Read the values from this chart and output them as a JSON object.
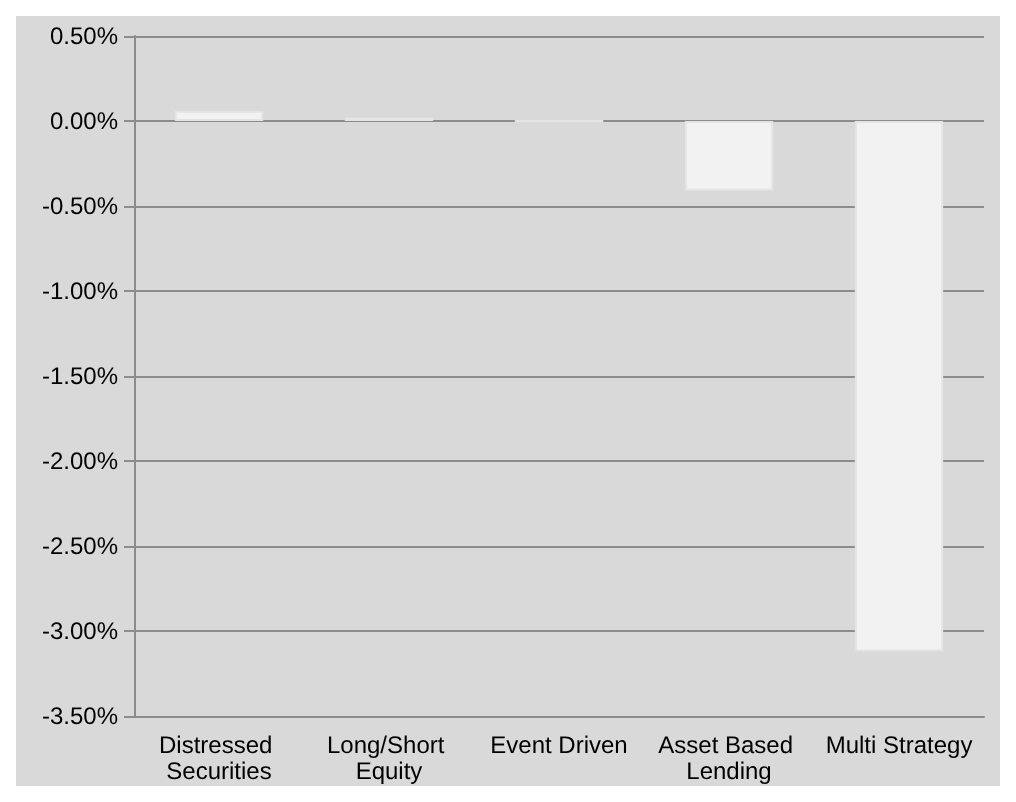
{
  "chart_data": {
    "type": "bar",
    "categories": [
      "Distressed Securities",
      "Long/Short Equity",
      "Event Driven",
      "Asset Based Lending",
      "Multi Strategy"
    ],
    "values": [
      0.06,
      0.02,
      0,
      -0.41,
      -3.12
    ],
    "color": "#f2f2f2",
    "ylim": [
      -3.5,
      0.5
    ],
    "yticks": [
      {
        "value": 0.5,
        "label": "0.50%"
      },
      {
        "value": 0,
        "label": "0.00%"
      },
      {
        "value": -0.5,
        "label": "-0.50%"
      },
      {
        "value": -1,
        "label": "-1.00%"
      },
      {
        "value": -1.5,
        "label": "-1.50%"
      },
      {
        "value": -2,
        "label": "-2.00%"
      },
      {
        "value": -2.5,
        "label": "-2.50%"
      },
      {
        "value": -3,
        "label": "-3.00%"
      },
      {
        "value": -3.5,
        "label": "-3.50%"
      }
    ],
    "grid": "y"
  }
}
